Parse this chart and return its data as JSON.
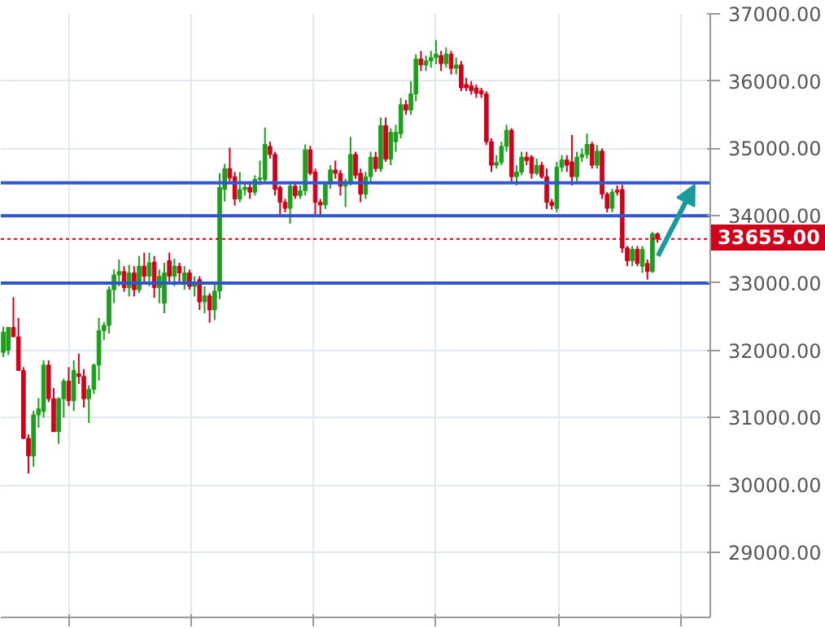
{
  "chart_data": {
    "type": "candlestick",
    "ylim": [
      28030,
      37000
    ],
    "yticks": [
      {
        "value": 29000,
        "label": "29000.00"
      },
      {
        "value": 30000,
        "label": "30000.00"
      },
      {
        "value": 31000,
        "label": "31000.00"
      },
      {
        "value": 32000,
        "label": "32000.00"
      },
      {
        "value": 33000,
        "label": "33000.00"
      },
      {
        "value": 34000,
        "label": "34000.00"
      },
      {
        "value": 35000,
        "label": "35000.00"
      },
      {
        "value": 36000,
        "label": "36000.00"
      },
      {
        "value": 37000,
        "label": "37000.00"
      }
    ],
    "tick_labels": "y",
    "grid": true,
    "ref_lines": [
      {
        "axis": "y",
        "value": 33655,
        "label": "33655.00",
        "color": "#d0021b",
        "line_style": "dotted"
      },
      {
        "axis": "y",
        "value": 34000,
        "color": "#3355cc",
        "line_style": "solid"
      },
      {
        "axis": "y",
        "value": 34490,
        "color": "#3456cd",
        "line_style": "solid"
      },
      {
        "axis": "y",
        "value": 33000,
        "color": "#3254cb",
        "line_style": "solid"
      }
    ],
    "categories": [
      null,
      null,
      null,
      null,
      null,
      null,
      null,
      null,
      null,
      null,
      null,
      null,
      null,
      null,
      null,
      null,
      null,
      null,
      null,
      null,
      null,
      null,
      null,
      null,
      null,
      null,
      null,
      null,
      null,
      null,
      null,
      null,
      null,
      null,
      null,
      null,
      null,
      null,
      null,
      null,
      null,
      null,
      null,
      null,
      null,
      null,
      null,
      null,
      null,
      null,
      null,
      null,
      null,
      null,
      null,
      null,
      null,
      null,
      null,
      null,
      null,
      null,
      null,
      null,
      null,
      null,
      null,
      null,
      null,
      null,
      null,
      null,
      null,
      null,
      null,
      null,
      null,
      null,
      null,
      null,
      null,
      null,
      null,
      null,
      null,
      null,
      null,
      null,
      null,
      null,
      null,
      null,
      null,
      null,
      null,
      null,
      null,
      null,
      null,
      null,
      null,
      null,
      null,
      null,
      null,
      null,
      null,
      null,
      null,
      null,
      null,
      null,
      null,
      null,
      null,
      null,
      null,
      null,
      null,
      null,
      null,
      null,
      null,
      null,
      null,
      null,
      null,
      null,
      null,
      null,
      null,
      null,
      null,
      null,
      null,
      null,
      null,
      null,
      null,
      null,
      null
    ],
    "ohlc": [
      [
        31970,
        32350,
        31900,
        32270
      ],
      [
        32000,
        32340,
        31930,
        32340
      ],
      [
        32340,
        32790,
        32200,
        32200
      ],
      [
        32200,
        32480,
        31700,
        31700
      ],
      [
        31700,
        31750,
        30680,
        30690
      ],
      [
        30690,
        30750,
        30170,
        30430
      ],
      [
        30430,
        31100,
        30270,
        31040
      ],
      [
        31040,
        31290,
        30850,
        31130
      ],
      [
        31090,
        31850,
        31000,
        31780
      ],
      [
        31780,
        31850,
        31230,
        31280
      ],
      [
        31280,
        31440,
        30790,
        30790
      ],
      [
        30790,
        31300,
        30610,
        31280
      ],
      [
        31280,
        31580,
        31000,
        31540
      ],
      [
        31540,
        31750,
        31170,
        31250
      ],
      [
        31250,
        31850,
        31100,
        31700
      ],
      [
        31650,
        31950,
        31500,
        31610
      ],
      [
        31610,
        31720,
        31150,
        31280
      ],
      [
        31280,
        31480,
        30920,
        31420
      ],
      [
        31420,
        31800,
        31350,
        31780
      ],
      [
        31780,
        32480,
        31550,
        32290
      ],
      [
        32290,
        32420,
        32150,
        32370
      ],
      [
        32370,
        32950,
        32250,
        32900
      ],
      [
        32900,
        33200,
        32700,
        33120
      ],
      [
        33120,
        33350,
        32950,
        33170
      ],
      [
        33170,
        33250,
        32870,
        32930
      ],
      [
        32930,
        33270,
        32800,
        33150
      ],
      [
        33150,
        33250,
        32800,
        32900
      ],
      [
        32900,
        33400,
        32850,
        33250
      ],
      [
        33250,
        33450,
        33000,
        33100
      ],
      [
        33100,
        33450,
        32950,
        33300
      ],
      [
        33310,
        33400,
        32780,
        32930
      ],
      [
        32930,
        33200,
        32700,
        33100
      ],
      [
        32700,
        33300,
        32550,
        33150
      ],
      [
        33330,
        33450,
        33000,
        33100
      ],
      [
        33100,
        33360,
        32950,
        33250
      ],
      [
        33250,
        33300,
        33000,
        33150
      ],
      [
        33000,
        33250,
        32900,
        33150
      ],
      [
        33150,
        33200,
        32900,
        32950
      ],
      [
        32950,
        33100,
        32800,
        33000
      ],
      [
        33050,
        33100,
        32600,
        32720
      ],
      [
        32720,
        32950,
        32550,
        32810
      ],
      [
        32810,
        32850,
        32410,
        32600
      ],
      [
        32600,
        33000,
        32450,
        32880
      ],
      [
        32880,
        34630,
        32760,
        34420
      ],
      [
        34390,
        34770,
        34210,
        34700
      ],
      [
        34700,
        35010,
        34500,
        34560
      ],
      [
        34580,
        34650,
        34150,
        34250
      ],
      [
        34250,
        34650,
        34200,
        34390
      ],
      [
        34390,
        34500,
        34300,
        34420
      ],
      [
        34420,
        34480,
        34250,
        34350
      ],
      [
        34350,
        34600,
        34300,
        34540
      ],
      [
        34540,
        34820,
        34450,
        34560
      ],
      [
        34540,
        35310,
        34500,
        35060
      ],
      [
        35030,
        35100,
        34850,
        34910
      ],
      [
        34910,
        34950,
        34300,
        34390
      ],
      [
        34420,
        34450,
        34010,
        34200
      ],
      [
        34200,
        34250,
        34050,
        34110
      ],
      [
        34110,
        34500,
        33880,
        34440
      ],
      [
        34440,
        34500,
        34250,
        34300
      ],
      [
        34300,
        34450,
        34250,
        34370
      ],
      [
        34370,
        35060,
        34300,
        34980
      ],
      [
        34980,
        35040,
        34600,
        34630
      ],
      [
        34650,
        34700,
        34000,
        34200
      ],
      [
        34200,
        34250,
        34000,
        34160
      ],
      [
        34160,
        34500,
        34100,
        34470
      ],
      [
        34470,
        34750,
        34400,
        34680
      ],
      [
        34680,
        34820,
        34550,
        34630
      ],
      [
        34630,
        34680,
        34300,
        34440
      ],
      [
        34440,
        34550,
        34130,
        34510
      ],
      [
        34510,
        35170,
        34450,
        34910
      ],
      [
        34910,
        34950,
        34550,
        34600
      ],
      [
        34630,
        34700,
        34200,
        34320
      ],
      [
        34320,
        34650,
        34250,
        34580
      ],
      [
        34580,
        34950,
        34500,
        34870
      ],
      [
        34870,
        34950,
        34650,
        34700
      ],
      [
        34700,
        35460,
        34650,
        35340
      ],
      [
        35340,
        35460,
        34800,
        34840
      ],
      [
        34840,
        35300,
        34750,
        35240
      ],
      [
        35100,
        35350,
        34950,
        35240
      ],
      [
        35220,
        35750,
        35150,
        35650
      ],
      [
        35650,
        35720,
        35500,
        35570
      ],
      [
        35570,
        36000,
        35500,
        35810
      ],
      [
        35810,
        36400,
        35700,
        36330
      ],
      [
        36330,
        36450,
        36150,
        36240
      ],
      [
        36240,
        36380,
        36150,
        36300
      ],
      [
        36300,
        36450,
        36200,
        36350
      ],
      [
        36350,
        36610,
        36250,
        36400
      ],
      [
        36380,
        36450,
        36150,
        36260
      ],
      [
        36260,
        36500,
        36200,
        36400
      ],
      [
        36400,
        36450,
        36100,
        36190
      ],
      [
        36190,
        36350,
        36100,
        36240
      ],
      [
        36240,
        36300,
        35850,
        35900
      ],
      [
        35950,
        36050,
        35850,
        35900
      ],
      [
        35930,
        36000,
        35800,
        35860
      ],
      [
        35900,
        35950,
        35750,
        35820
      ],
      [
        35860,
        35900,
        35750,
        35810
      ],
      [
        35810,
        35850,
        35050,
        35100
      ],
      [
        35100,
        35150,
        34650,
        34750
      ],
      [
        34750,
        34900,
        34700,
        34790
      ],
      [
        34790,
        35100,
        34750,
        35030
      ],
      [
        35030,
        35350,
        34950,
        35270
      ],
      [
        35270,
        35300,
        34500,
        34580
      ],
      [
        34580,
        34750,
        34450,
        34650
      ],
      [
        34650,
        34950,
        34600,
        34870
      ],
      [
        34870,
        34950,
        34750,
        34820
      ],
      [
        34870,
        34900,
        34550,
        34630
      ],
      [
        34630,
        34850,
        34600,
        34750
      ],
      [
        34750,
        34800,
        34550,
        34580
      ],
      [
        34580,
        34700,
        34100,
        34200
      ],
      [
        34200,
        34250,
        34090,
        34150
      ],
      [
        34110,
        34800,
        34050,
        34720
      ],
      [
        34720,
        34900,
        34650,
        34830
      ],
      [
        34830,
        34900,
        34650,
        34750
      ],
      [
        34800,
        35200,
        34450,
        34580
      ],
      [
        34580,
        34950,
        34500,
        34870
      ],
      [
        34870,
        35000,
        34800,
        34910
      ],
      [
        34910,
        35220,
        34850,
        35060
      ],
      [
        35060,
        35100,
        34700,
        34750
      ],
      [
        34750,
        35050,
        34700,
        34960
      ],
      [
        34960,
        35000,
        34250,
        34320
      ],
      [
        34320,
        34350,
        34050,
        34110
      ],
      [
        34110,
        34400,
        34050,
        34350
      ],
      [
        34380,
        34450,
        34300,
        34350
      ],
      [
        34390,
        34460,
        33450,
        33520
      ],
      [
        33520,
        33550,
        33250,
        33330
      ],
      [
        33330,
        33550,
        33250,
        33500
      ],
      [
        33500,
        33550,
        33250,
        33290
      ],
      [
        33250,
        33550,
        33150,
        33500
      ],
      [
        33290,
        33350,
        33050,
        33170
      ],
      [
        33170,
        33760,
        33150,
        33730
      ],
      [
        33730,
        33750,
        33600,
        33655
      ],
      null,
      null,
      null,
      null,
      null,
      null,
      null,
      null,
      null,
      null
    ],
    "colors": [
      "#1ca01c",
      "#1ca01c",
      "#d0021b",
      "#d0021b",
      "#d0021b",
      "#d0021b",
      "#1ca01c",
      "#1ca01c",
      "#1ca01c",
      "#d0021b",
      "#d0021b",
      "#1ca01c",
      "#1ca01c",
      "#d0021b",
      "#1ca01c",
      "#d0021b",
      "#d0021b",
      "#1ca01c",
      "#1ca01c",
      "#1ca01c",
      "#1ca01c",
      "#1ca01c",
      "#1ca01c",
      "#1ca01c",
      "#d0021b",
      "#1ca01c",
      "#d0021b",
      "#1ca01c",
      "#d0021b",
      "#1ca01c",
      "#d0021b",
      "#1ca01c",
      "#1ca01c",
      "#d0021b",
      "#1ca01c",
      "#d0021b",
      "#1ca01c",
      "#d0021b",
      "#1ca01c",
      "#d0021b",
      "#1ca01c",
      "#d0021b",
      "#1ca01c",
      "#1ca01c",
      "#1ca01c",
      "#d0021b",
      "#d0021b",
      "#1ca01c",
      "#1ca01c",
      "#d0021b",
      "#1ca01c",
      "#1ca01c",
      "#1ca01c",
      "#d0021b",
      "#d0021b",
      "#d0021b",
      "#d0021b",
      "#1ca01c",
      "#d0021b",
      "#1ca01c",
      "#1ca01c",
      "#d0021b",
      "#d0021b",
      "#d0021b",
      "#1ca01c",
      "#1ca01c",
      "#d0021b",
      "#d0021b",
      "#1ca01c",
      "#1ca01c",
      "#d0021b",
      "#d0021b",
      "#1ca01c",
      "#1ca01c",
      "#d0021b",
      "#1ca01c",
      "#d0021b",
      "#1ca01c",
      "#1ca01c",
      "#1ca01c",
      "#d0021b",
      "#1ca01c",
      "#1ca01c",
      "#d0021b",
      "#1ca01c",
      "#1ca01c",
      "#1ca01c",
      "#d0021b",
      "#1ca01c",
      "#d0021b",
      "#1ca01c",
      "#d0021b",
      "#d0021b",
      "#d0021b",
      "#d0021b",
      "#d0021b",
      "#d0021b",
      "#d0021b",
      "#1ca01c",
      "#1ca01c",
      "#1ca01c",
      "#d0021b",
      "#1ca01c",
      "#1ca01c",
      "#d0021b",
      "#d0021b",
      "#1ca01c",
      "#d0021b",
      "#d0021b",
      "#d0021b",
      "#1ca01c",
      "#1ca01c",
      "#d0021b",
      "#d0021b",
      "#1ca01c",
      "#1ca01c",
      "#1ca01c",
      "#d0021b",
      "#1ca01c",
      "#d0021b",
      "#d0021b",
      "#1ca01c",
      "#d0021b",
      "#d0021b",
      "#d0021b",
      "#1ca01c",
      "#d0021b",
      "#1ca01c",
      "#d0021b",
      "#1ca01c",
      "#d0021b",
      null,
      null,
      null,
      null,
      null,
      null,
      null,
      null,
      null,
      null
    ]
  }
}
